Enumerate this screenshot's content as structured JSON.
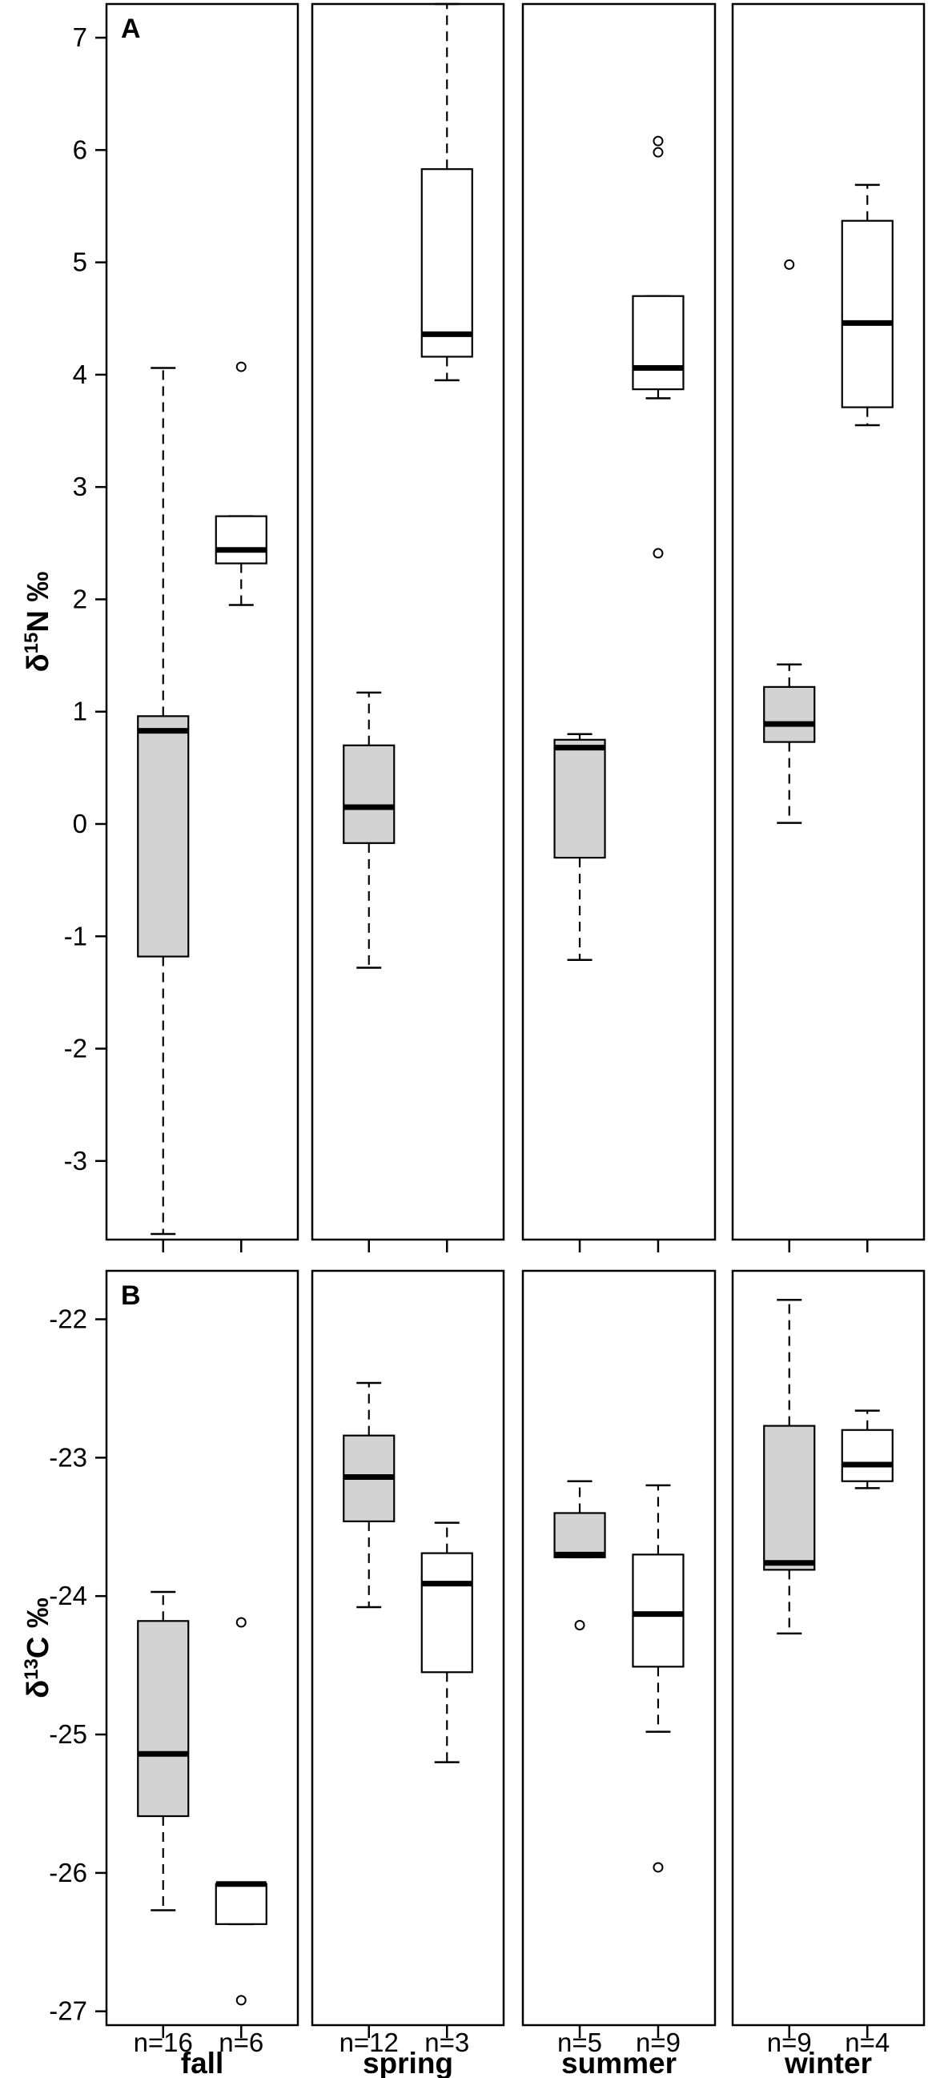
{
  "chart_data": {
    "type": "box",
    "seasons": [
      "fall",
      "spring",
      "summer",
      "winter"
    ],
    "group_counts": [
      [
        "n=16",
        "n=6"
      ],
      [
        "n=12",
        "n=3"
      ],
      [
        "n=5",
        "n=9"
      ],
      [
        "n=9",
        "n=4"
      ]
    ],
    "group_colors": [
      "#d3d3d3",
      "#ffffff"
    ],
    "panels": [
      {
        "label": "A",
        "ylabel": "δ15N ‰",
        "ylabel_parts": {
          "prefix": "δ",
          "sup": "15",
          "suffix": "N ‰"
        },
        "ylim": [
          -3.7,
          7.3
        ],
        "yticks": [
          -3,
          -2,
          -1,
          0,
          1,
          2,
          3,
          4,
          5,
          6,
          7
        ],
        "boxes": [
          [
            {
              "whisker_low": -3.65,
              "q1": -1.18,
              "median": 0.83,
              "q3": 0.96,
              "whisker_high": 4.06,
              "outliers": []
            },
            {
              "whisker_low": 1.95,
              "q1": 2.32,
              "median": 2.44,
              "q3": 2.74,
              "whisker_high": 2.74,
              "outliers": [
                4.07
              ]
            }
          ],
          [
            {
              "whisker_low": -1.28,
              "q1": -0.17,
              "median": 0.15,
              "q3": 0.7,
              "whisker_high": 1.17,
              "outliers": []
            },
            {
              "whisker_low": 3.95,
              "q1": 4.16,
              "median": 4.36,
              "q3": 5.83,
              "whisker_high": 7.3,
              "outliers": []
            }
          ],
          [
            {
              "whisker_low": -1.21,
              "q1": -0.3,
              "median": 0.68,
              "q3": 0.75,
              "whisker_high": 0.8,
              "outliers": []
            },
            {
              "whisker_low": 3.79,
              "q1": 3.87,
              "median": 4.06,
              "q3": 4.7,
              "whisker_high": 4.7,
              "outliers": [
                2.41,
                5.98,
                6.08
              ]
            }
          ],
          [
            {
              "whisker_low": 0.01,
              "q1": 0.73,
              "median": 0.89,
              "q3": 1.22,
              "whisker_high": 1.42,
              "outliers": [
                4.98
              ]
            },
            {
              "whisker_low": 3.55,
              "q1": 3.71,
              "median": 4.46,
              "q3": 5.37,
              "whisker_high": 5.69,
              "outliers": []
            }
          ]
        ]
      },
      {
        "label": "B",
        "ylabel": "δ13C ‰",
        "ylabel_parts": {
          "prefix": "δ",
          "sup": "13",
          "suffix": "C ‰"
        },
        "ylim": [
          -27.1,
          -21.65
        ],
        "yticks": [
          -27,
          -26,
          -25,
          -24,
          -23,
          -22
        ],
        "boxes": [
          [
            {
              "whisker_low": -26.27,
              "q1": -25.59,
              "median": -25.14,
              "q3": -24.18,
              "whisker_high": -23.97,
              "outliers": []
            },
            {
              "whisker_low": -26.37,
              "q1": -26.37,
              "median": -26.08,
              "q3": -26.08,
              "whisker_high": -26.08,
              "outliers": [
                -24.19,
                -26.92
              ]
            }
          ],
          [
            {
              "whisker_low": -24.08,
              "q1": -23.46,
              "median": -23.14,
              "q3": -22.84,
              "whisker_high": -22.46,
              "outliers": []
            },
            {
              "whisker_low": -25.2,
              "q1": -24.55,
              "median": -23.91,
              "q3": -23.69,
              "whisker_high": -23.47,
              "outliers": []
            }
          ],
          [
            {
              "whisker_low": -23.72,
              "q1": -23.72,
              "median": -23.7,
              "q3": -23.4,
              "whisker_high": -23.17,
              "outliers": [
                -24.21
              ]
            },
            {
              "whisker_low": -24.98,
              "q1": -24.51,
              "median": -24.13,
              "q3": -23.7,
              "whisker_high": -23.2,
              "outliers": [
                -25.96
              ]
            }
          ],
          [
            {
              "whisker_low": -24.27,
              "q1": -23.81,
              "median": -23.76,
              "q3": -22.77,
              "whisker_high": -21.86,
              "outliers": []
            },
            {
              "whisker_low": -23.22,
              "q1": -23.17,
              "median": -23.05,
              "q3": -22.8,
              "whisker_high": -22.66,
              "outliers": []
            }
          ]
        ]
      }
    ]
  }
}
